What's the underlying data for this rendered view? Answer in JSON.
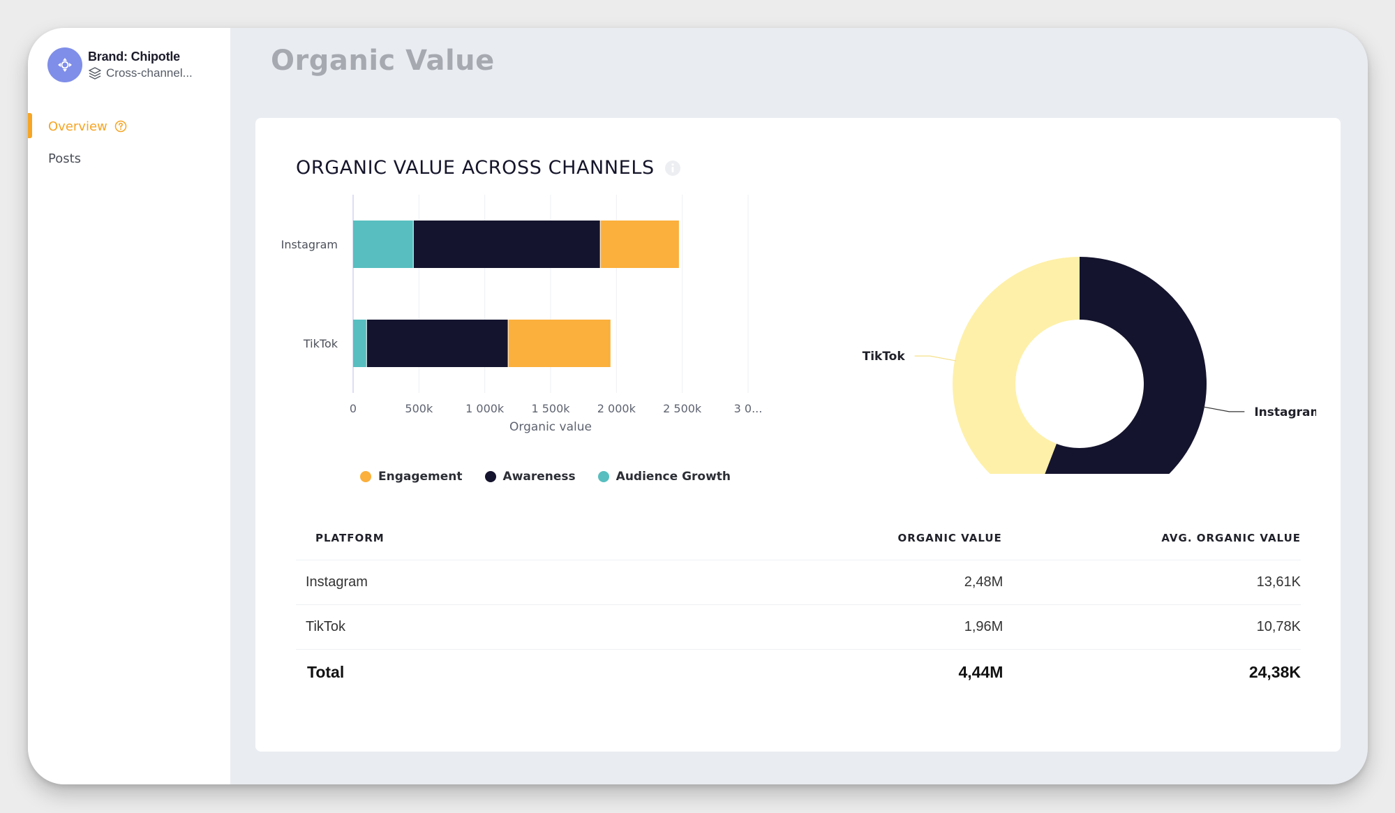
{
  "sidebar": {
    "brand_name": "Brand: Chipotle",
    "brand_sub": "Cross-channel...",
    "items": [
      {
        "label": "Overview",
        "active": true
      },
      {
        "label": "Posts",
        "active": false
      }
    ]
  },
  "page_title": "Organic Value",
  "card": {
    "title": "ORGANIC VALUE ACROSS CHANNELS"
  },
  "colors": {
    "engagement": "#fbaf3c",
    "awareness": "#15142e",
    "audience_growth": "#58bebf",
    "tiktok_donut": "#fef0a8",
    "accent": "#f6a524"
  },
  "chart_data": [
    {
      "type": "bar",
      "orientation": "horizontal",
      "stacked": true,
      "categories": [
        "Instagram",
        "TikTok"
      ],
      "series": [
        {
          "name": "Audience Growth",
          "values": [
            460000,
            105000
          ]
        },
        {
          "name": "Awareness",
          "values": [
            1420000,
            1075000
          ]
        },
        {
          "name": "Engagement",
          "values": [
            600000,
            780000
          ]
        }
      ],
      "xlabel": "Organic value",
      "xticks": [
        "0",
        "500k",
        "1 000k",
        "1 500k",
        "2 000k",
        "2 500k",
        "3 0..."
      ],
      "xlim": [
        0,
        3000000
      ],
      "legend": [
        "Engagement",
        "Awareness",
        "Audience Growth"
      ],
      "legend_position": "bottom"
    },
    {
      "type": "pie",
      "donut": true,
      "labels": [
        "Instagram",
        "TikTok"
      ],
      "values": [
        2.48,
        1.96
      ]
    }
  ],
  "table": {
    "headers": [
      "PLATFORM",
      "ORGANIC VALUE",
      "AVG. ORGANIC VALUE"
    ],
    "rows": [
      [
        "Instagram",
        "2,48M",
        "13,61K"
      ],
      [
        "TikTok",
        "1,96M",
        "10,78K"
      ]
    ],
    "total": [
      "Total",
      "4,44M",
      "24,38K"
    ]
  }
}
